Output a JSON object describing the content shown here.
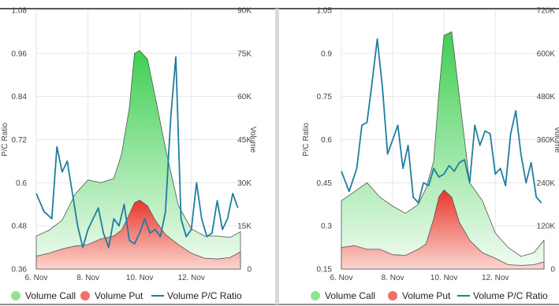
{
  "colors": {
    "call": "#8ee58e",
    "put": "#f0706a",
    "ratio": "#1f7ea1",
    "divider": "#d8d8d8",
    "frame": "#222222"
  },
  "legend": [
    {
      "key": "call",
      "label": "Volume Call",
      "icon": "circle-icon"
    },
    {
      "key": "put",
      "label": "Volume Put",
      "icon": "circle-icon"
    },
    {
      "key": "ratio",
      "label": "Volume P/C Ratio",
      "icon": "line-icon"
    }
  ],
  "chart_data": [
    {
      "type": "area",
      "grid": true,
      "legend_position": "bottom",
      "x_label": "",
      "x_ticks": [
        "6. Nov",
        "8. Nov",
        "10. Nov",
        "12. Nov"
      ],
      "x_range": [
        6,
        13.9
      ],
      "y_left": {
        "label": "P/C Ratio",
        "range": [
          0.36,
          1.08
        ],
        "ticks": [
          "0.36",
          "0.48",
          "0.6",
          "0.72",
          "0.84",
          "0.96",
          "1.08"
        ]
      },
      "y_right": {
        "label": "Volume",
        "range": [
          0,
          90000
        ],
        "ticks": [
          "0",
          "15K",
          "30K",
          "45K",
          "60K",
          "75K",
          "90K"
        ]
      },
      "series": [
        {
          "name": "Volume Call",
          "axis": "right",
          "x": [
            6.0,
            6.5,
            7.0,
            7.5,
            8.0,
            8.5,
            9.0,
            9.3,
            9.6,
            9.8,
            10.0,
            10.3,
            10.6,
            11.0,
            11.5,
            12.0,
            12.5,
            13.0,
            13.5,
            13.9
          ],
          "values": [
            11500,
            13500,
            17000,
            26000,
            31000,
            30000,
            31500,
            40000,
            56000,
            75000,
            76000,
            73000,
            60000,
            42000,
            22000,
            14000,
            11500,
            11500,
            11000,
            13000
          ]
        },
        {
          "name": "Volume Put",
          "axis": "right",
          "x": [
            6.0,
            6.5,
            7.0,
            7.5,
            8.0,
            8.5,
            9.0,
            9.3,
            9.6,
            9.8,
            10.0,
            10.3,
            10.6,
            11.0,
            11.5,
            12.0,
            12.5,
            13.0,
            13.5,
            13.9
          ],
          "values": [
            4500,
            5500,
            7000,
            8000,
            8500,
            10500,
            11500,
            13500,
            19000,
            23000,
            24000,
            22000,
            17000,
            12000,
            8500,
            5500,
            3800,
            3500,
            4000,
            6000
          ]
        },
        {
          "name": "Volume P/C Ratio",
          "axis": "left",
          "x": [
            6.0,
            6.3,
            6.6,
            6.8,
            7.0,
            7.2,
            7.4,
            7.6,
            7.8,
            8.0,
            8.2,
            8.4,
            8.6,
            8.8,
            9.0,
            9.2,
            9.4,
            9.6,
            9.8,
            10.0,
            10.2,
            10.4,
            10.6,
            10.8,
            11.0,
            11.2,
            11.4,
            11.6,
            11.8,
            12.0,
            12.2,
            12.4,
            12.6,
            12.8,
            13.0,
            13.2,
            13.4,
            13.6,
            13.8
          ],
          "values": [
            0.57,
            0.52,
            0.5,
            0.7,
            0.63,
            0.66,
            0.57,
            0.48,
            0.42,
            0.47,
            0.5,
            0.53,
            0.46,
            0.42,
            0.5,
            0.48,
            0.54,
            0.44,
            0.43,
            0.46,
            0.5,
            0.46,
            0.47,
            0.45,
            0.52,
            0.78,
            0.95,
            0.5,
            0.45,
            0.47,
            0.6,
            0.5,
            0.45,
            0.46,
            0.55,
            0.47,
            0.5,
            0.57,
            0.53
          ]
        }
      ]
    },
    {
      "type": "area",
      "grid": true,
      "legend_position": "bottom",
      "x_label": "",
      "x_ticks": [
        "6. Nov",
        "8. Nov",
        "10. Nov",
        "12. Nov"
      ],
      "x_range": [
        6,
        13.9
      ],
      "y_left": {
        "label": "P/C Ratio",
        "range": [
          0.15,
          1.05
        ],
        "ticks": [
          "0.15",
          "0.3",
          "0.45",
          "0.6",
          "0.75",
          "0.9",
          "1.05"
        ]
      },
      "y_right": {
        "label": "Volume",
        "range": [
          0,
          720000
        ],
        "ticks": [
          "0",
          "120K",
          "240K",
          "360K",
          "480K",
          "600K",
          "720K"
        ]
      },
      "series": [
        {
          "name": "Volume Call",
          "axis": "right",
          "x": [
            6.0,
            6.5,
            7.0,
            7.5,
            8.0,
            8.5,
            9.0,
            9.3,
            9.6,
            9.8,
            10.0,
            10.3,
            10.6,
            11.0,
            11.5,
            12.0,
            12.5,
            13.0,
            13.5,
            13.9
          ],
          "values": [
            190000,
            215000,
            240000,
            200000,
            175000,
            155000,
            180000,
            225000,
            300000,
            490000,
            650000,
            660000,
            480000,
            240000,
            190000,
            100000,
            60000,
            35000,
            45000,
            80000
          ]
        },
        {
          "name": "Volume Put",
          "axis": "right",
          "x": [
            6.0,
            6.5,
            7.0,
            7.5,
            8.0,
            8.5,
            9.0,
            9.3,
            9.6,
            9.8,
            10.0,
            10.3,
            10.6,
            11.0,
            11.5,
            12.0,
            12.5,
            13.0,
            13.5,
            13.9
          ],
          "values": [
            60000,
            65000,
            55000,
            55000,
            40000,
            38000,
            55000,
            70000,
            140000,
            200000,
            220000,
            200000,
            130000,
            80000,
            45000,
            30000,
            12000,
            10000,
            12000,
            20000
          ]
        },
        {
          "name": "Volume P/C Ratio",
          "axis": "left",
          "x": [
            6.0,
            6.3,
            6.6,
            6.8,
            7.0,
            7.2,
            7.4,
            7.6,
            7.8,
            8.0,
            8.2,
            8.4,
            8.6,
            8.8,
            9.0,
            9.2,
            9.4,
            9.6,
            9.8,
            10.0,
            10.2,
            10.4,
            10.6,
            10.8,
            11.0,
            11.2,
            11.4,
            11.6,
            11.8,
            12.0,
            12.2,
            12.4,
            12.6,
            12.8,
            13.0,
            13.2,
            13.4,
            13.6,
            13.8
          ],
          "values": [
            0.49,
            0.42,
            0.5,
            0.65,
            0.66,
            0.8,
            0.95,
            0.78,
            0.55,
            0.6,
            0.65,
            0.5,
            0.58,
            0.4,
            0.38,
            0.45,
            0.44,
            0.5,
            0.47,
            0.48,
            0.51,
            0.49,
            0.52,
            0.53,
            0.45,
            0.65,
            0.58,
            0.63,
            0.62,
            0.48,
            0.5,
            0.44,
            0.62,
            0.7,
            0.55,
            0.45,
            0.52,
            0.4,
            0.38
          ]
        }
      ]
    }
  ]
}
